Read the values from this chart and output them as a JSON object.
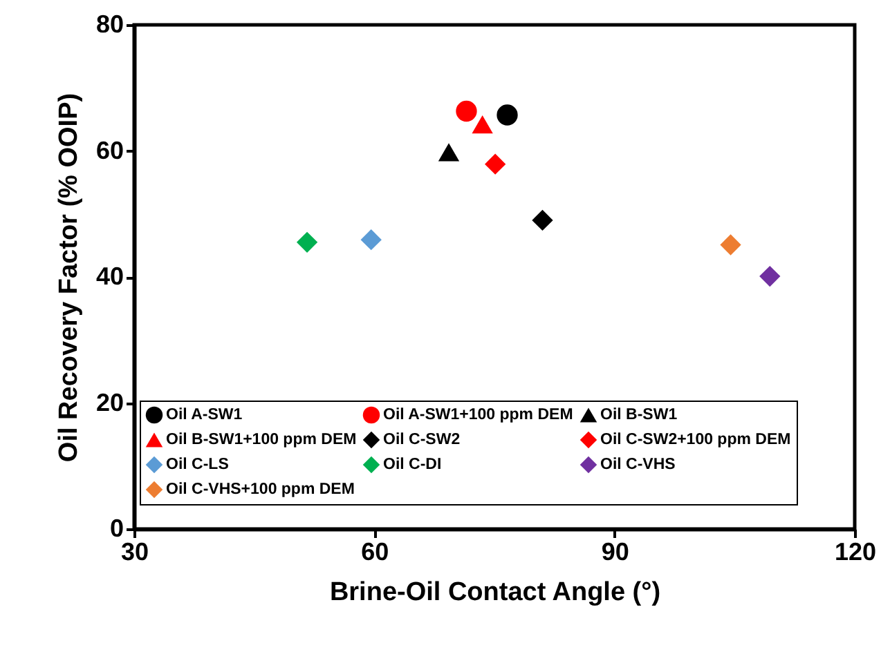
{
  "chart_data": {
    "type": "scatter",
    "xlabel": "Brine-Oil Contact Angle (°)",
    "ylabel": "Oil Recovery Factor (% OOIP)",
    "xlim": [
      30,
      120
    ],
    "xticks": [
      30,
      60,
      90,
      120
    ],
    "ylim": [
      0,
      80
    ],
    "yticks": [
      0,
      20,
      40,
      60,
      80
    ],
    "grid": false,
    "legend": "bottom",
    "series": [
      {
        "name": "Oil A-SW1",
        "color": "#000000",
        "marker": "circle",
        "x": [
          76.6
        ],
        "values": [
          65.7
        ]
      },
      {
        "name": "Oil A-SW1+100 ppm DEM",
        "color": "#ff0000",
        "marker": "circle",
        "x": [
          71.5
        ],
        "values": [
          66.3
        ]
      },
      {
        "name": "Oil B-SW1",
        "color": "#000000",
        "marker": "triangle",
        "x": [
          69.3
        ],
        "values": [
          59.8
        ]
      },
      {
        "name": "Oil B-SW1+100 ppm DEM",
        "color": "#ff0000",
        "marker": "triangle",
        "x": [
          73.5
        ],
        "values": [
          64.2
        ]
      },
      {
        "name": "Oil C-SW2",
        "color": "#000000",
        "marker": "diamond",
        "x": [
          81.0
        ],
        "values": [
          49.0
        ]
      },
      {
        "name": "Oil C-SW2+100 ppm DEM",
        "color": "#ff0000",
        "marker": "diamond",
        "x": [
          75.1
        ],
        "values": [
          57.9
        ]
      },
      {
        "name": "Oil C-LS",
        "color": "#5b9bd5",
        "marker": "diamond",
        "x": [
          59.6
        ],
        "values": [
          45.9
        ]
      },
      {
        "name": "Oil C-DI",
        "color": "#00b050",
        "marker": "diamond",
        "x": [
          51.6
        ],
        "values": [
          45.5
        ]
      },
      {
        "name": "Oil C-VHS",
        "color": "#7030a0",
        "marker": "diamond",
        "x": [
          109.4
        ],
        "values": [
          40.1
        ]
      },
      {
        "name": "Oil C-VHS+100 ppm DEM",
        "color": "#ed7d31",
        "marker": "diamond",
        "x": [
          104.5
        ],
        "values": [
          45.1
        ]
      }
    ]
  }
}
